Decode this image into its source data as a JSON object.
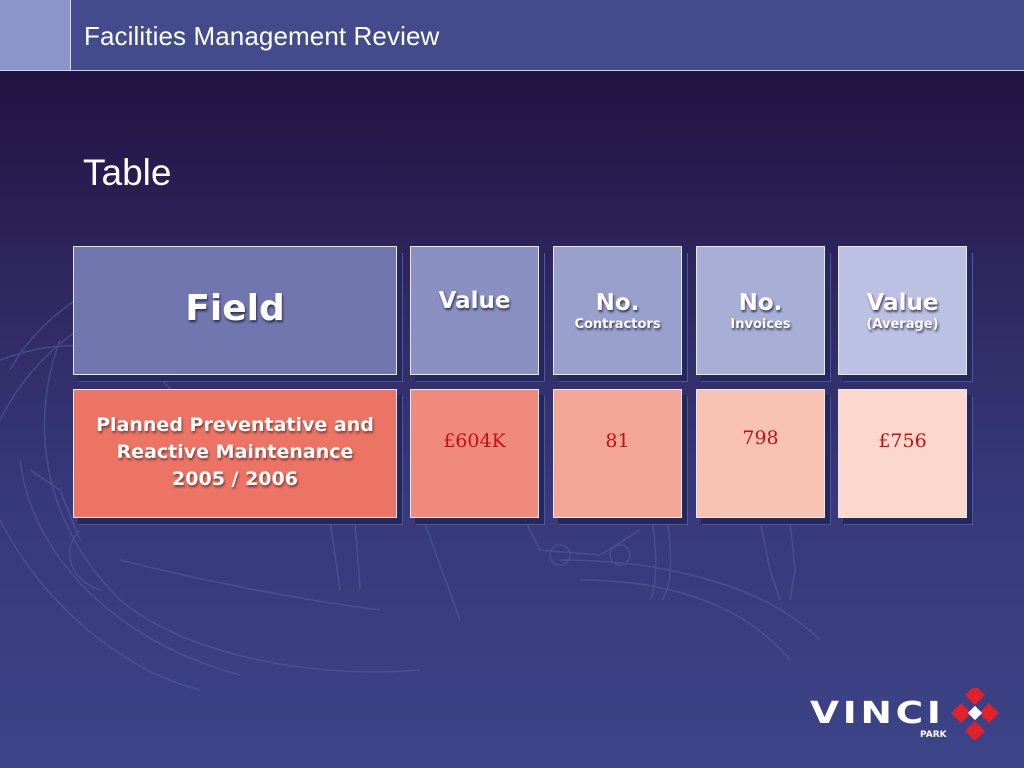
{
  "header": {
    "title": "Facilities Management Review"
  },
  "slide": {
    "title": "Table"
  },
  "table": {
    "headers": [
      {
        "main": "Field",
        "sub": ""
      },
      {
        "main": "Value",
        "sub": ""
      },
      {
        "main": "No.",
        "sub": "Contractors"
      },
      {
        "main": "No.",
        "sub": "Invoices"
      },
      {
        "main": "Value",
        "sub": "(Average)"
      }
    ],
    "row": {
      "label_line1": "Planned Preventative and",
      "label_line2": "Reactive Maintenance",
      "label_line3": "2005 / 2006",
      "values": [
        "£604K",
        "81",
        "798",
        "£756"
      ]
    }
  },
  "logo": {
    "word": "VINCI",
    "sub": "PARK"
  },
  "colors": {
    "header_bg": "#444b8d",
    "header_accent": "#8c95c9",
    "value_text": "#c0101c",
    "logo_red": "#e3212b"
  }
}
